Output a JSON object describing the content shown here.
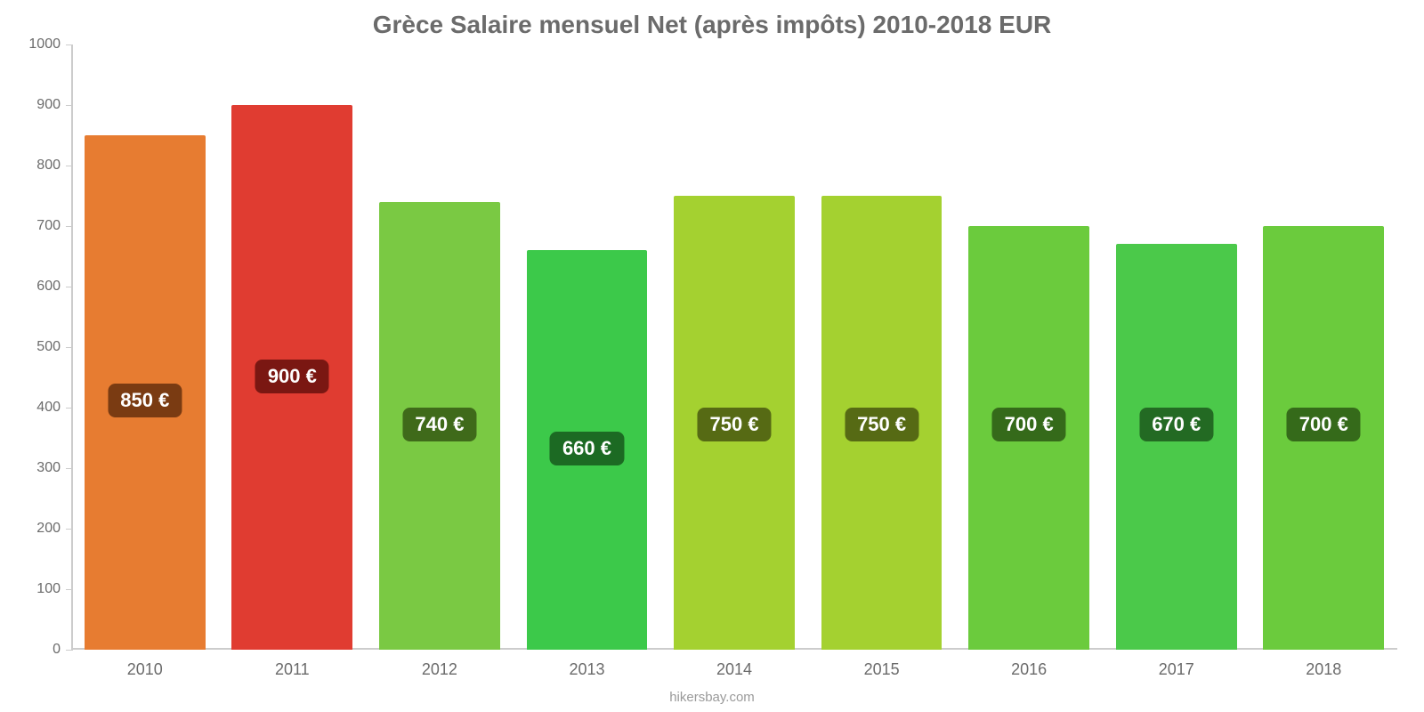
{
  "chart": {
    "type": "bar",
    "title": "Grèce Salaire mensuel Net (après impôts) 2010-2018 EUR",
    "title_fontsize": 28,
    "title_color": "#6b6b6b",
    "background_color": "#ffffff",
    "axis_color": "#cccccc",
    "label_color": "#6b6b6b",
    "axis_label_fontsize": 16,
    "category_label_fontsize": 18,
    "value_label_fontsize": 22,
    "bar_width_ratio": 0.82,
    "y": {
      "min": 0,
      "max": 1000,
      "tick_step": 100,
      "ticks": [
        0,
        100,
        200,
        300,
        400,
        500,
        600,
        700,
        800,
        900,
        1000
      ]
    },
    "categories": [
      "2010",
      "2011",
      "2012",
      "2013",
      "2014",
      "2015",
      "2016",
      "2017",
      "2018"
    ],
    "values": [
      850,
      900,
      740,
      660,
      750,
      750,
      700,
      670,
      700
    ],
    "display_values": [
      850,
      900,
      740,
      660,
      750,
      750,
      700,
      670,
      700
    ],
    "value_labels": [
      "850 €",
      "900 €",
      "740 €",
      "660 €",
      "750 €",
      "750 €",
      "700 €",
      "670 €",
      "700 €"
    ],
    "bar_colors": [
      "#e77c31",
      "#e03c31",
      "#7ac943",
      "#3cc94a",
      "#a4d130",
      "#a4d130",
      "#6bcb3d",
      "#4bc94a",
      "#6bcb3d"
    ],
    "label_bg_colors": [
      "#7a3b12",
      "#7a1712",
      "#3f6a1a",
      "#1c6a23",
      "#566a14",
      "#566a14",
      "#356a1a",
      "#236a23",
      "#356a1a"
    ],
    "label_baseline_value": 400,
    "label_offset_step": 40,
    "label_offsets": [
      1,
      2,
      0,
      -1,
      0,
      0,
      0,
      0,
      0
    ],
    "footer": "hikersbay.com",
    "footer_color": "#9a9a9a",
    "footer_fontsize": 15
  }
}
